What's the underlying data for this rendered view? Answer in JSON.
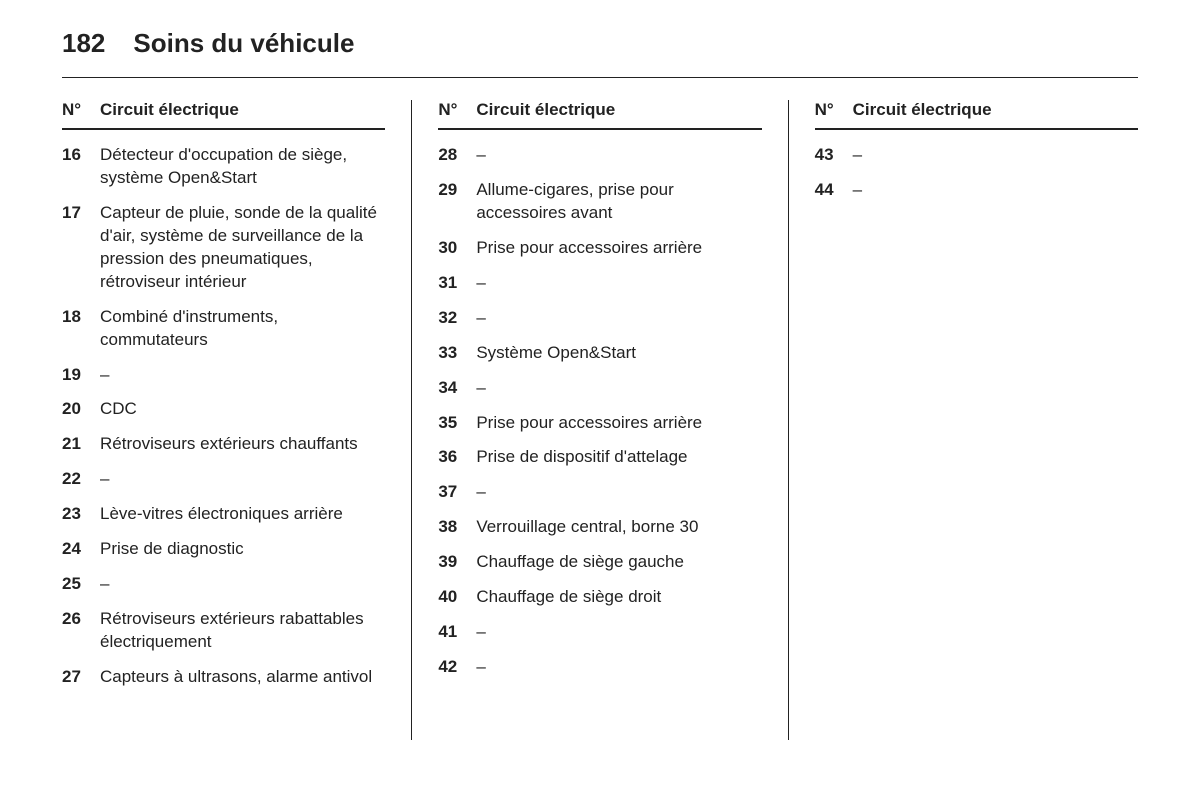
{
  "page_number": "182",
  "page_title": "Soins du véhicule",
  "column_header": {
    "num": "N°",
    "desc": "Circuit électrique"
  },
  "columns": [
    {
      "items": [
        {
          "num": "16",
          "desc": "Détecteur d'occupation de siège, système Open&Start"
        },
        {
          "num": "17",
          "desc": "Capteur de pluie, sonde de la qualité d'air, système de surveillance de la pression des pneumatiques, rétroviseur intérieur"
        },
        {
          "num": "18",
          "desc": "Combiné d'instruments, commutateurs"
        },
        {
          "num": "19",
          "desc": "–"
        },
        {
          "num": "20",
          "desc": "CDC"
        },
        {
          "num": "21",
          "desc": "Rétroviseurs extérieurs chauffants"
        },
        {
          "num": "22",
          "desc": "–"
        },
        {
          "num": "23",
          "desc": "Lève-vitres électroniques arrière"
        },
        {
          "num": "24",
          "desc": "Prise de diagnostic"
        },
        {
          "num": "25",
          "desc": "–"
        },
        {
          "num": "26",
          "desc": "Rétroviseurs extérieurs rabattables électriquement"
        },
        {
          "num": "27",
          "desc": "Capteurs à ultrasons, alarme antivol"
        }
      ]
    },
    {
      "items": [
        {
          "num": "28",
          "desc": "–"
        },
        {
          "num": "29",
          "desc": "Allume-cigares, prise pour accessoires avant"
        },
        {
          "num": "30",
          "desc": "Prise pour accessoires arrière"
        },
        {
          "num": "31",
          "desc": "–"
        },
        {
          "num": "32",
          "desc": "–"
        },
        {
          "num": "33",
          "desc": "Système Open&Start"
        },
        {
          "num": "34",
          "desc": "–"
        },
        {
          "num": "35",
          "desc": "Prise pour accessoires arrière"
        },
        {
          "num": "36",
          "desc": "Prise de dispositif d'attelage"
        },
        {
          "num": "37",
          "desc": "–"
        },
        {
          "num": "38",
          "desc": "Verrouillage central, borne 30"
        },
        {
          "num": "39",
          "desc": "Chauffage de siège gauche"
        },
        {
          "num": "40",
          "desc": "Chauffage de siège droit"
        },
        {
          "num": "41",
          "desc": "–"
        },
        {
          "num": "42",
          "desc": "–"
        }
      ]
    },
    {
      "items": [
        {
          "num": "43",
          "desc": "–"
        },
        {
          "num": "44",
          "desc": "–"
        }
      ]
    }
  ],
  "styling": {
    "background_color": "#ffffff",
    "text_color": "#222222",
    "border_color": "#222222",
    "page_num_fontsize": 26,
    "page_title_fontsize": 26,
    "header_fontsize": 17,
    "body_fontsize": 17,
    "num_weight": 700,
    "font_family": "Arial"
  }
}
